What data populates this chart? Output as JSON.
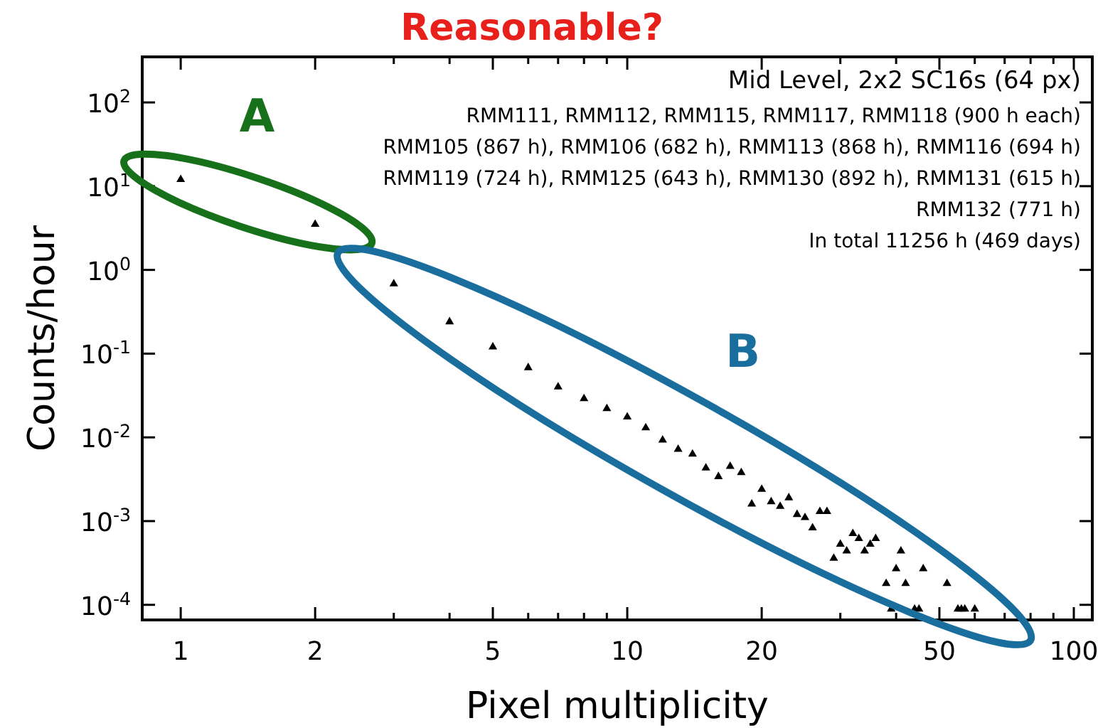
{
  "chart_data": {
    "type": "scatter",
    "title": "Reasonable?",
    "xlabel": "Pixel multiplicity",
    "ylabel": "Counts/hour",
    "log": "xy",
    "marker": "triangle",
    "xlim": [
      0.82,
      110
    ],
    "ylim": [
      6.6e-05,
      350
    ],
    "xticks": [
      1,
      2,
      {
        "value": 3,
        "label": null
      },
      {
        "value": 4,
        "label": null
      },
      5,
      {
        "value": 6,
        "label": null
      },
      {
        "value": 7,
        "label": null
      },
      {
        "value": 8,
        "label": null
      },
      {
        "value": 9,
        "label": null
      },
      10,
      20,
      {
        "value": 30,
        "label": null
      },
      {
        "value": 40,
        "label": null
      },
      50,
      {
        "value": 60,
        "label": null
      },
      {
        "value": 70,
        "label": null
      },
      {
        "value": 80,
        "label": null
      },
      {
        "value": 90,
        "label": null
      },
      100
    ],
    "yticks": [
      {
        "value": 0.0001,
        "label": "10$^{-4}$"
      },
      {
        "value": 0.001,
        "label": "10$^{-3}$"
      },
      {
        "value": 0.01,
        "label": "10$^{-2}$"
      },
      {
        "value": 0.1,
        "label": "10$^{-1}$"
      },
      {
        "value": 1,
        "label": "10$^{0}$"
      },
      {
        "value": 10,
        "label": "10$^{1}$"
      },
      {
        "value": 100,
        "label": "10$^{2}$"
      }
    ],
    "series": [
      {
        "color": "#000000",
        "x": [
          1,
          2
        ],
        "values": [
          12,
          3.5
        ]
      },
      {
        "color": "#000000",
        "x": [
          3,
          4,
          5,
          6,
          7,
          8,
          9,
          10,
          11,
          12,
          13,
          14,
          15,
          16,
          17,
          18,
          19,
          20,
          21,
          22,
          23,
          24,
          25,
          26,
          27,
          28,
          29,
          30,
          31,
          32,
          33,
          34,
          35,
          36,
          38,
          39,
          40,
          41,
          42,
          44,
          45,
          46,
          52,
          55,
          56,
          57,
          60
        ],
        "values": [
          0.68,
          0.24,
          0.12,
          0.068,
          0.04,
          0.029,
          0.022,
          0.0175,
          0.013,
          0.0093,
          0.0072,
          0.0063,
          0.0043,
          0.0034,
          0.0045,
          0.0038,
          0.0016,
          0.0024,
          0.0017,
          0.0015,
          0.0019,
          0.0012,
          0.0011,
          0.00083,
          0.0013,
          0.0013,
          0.00036,
          0.00053,
          0.00044,
          0.00071,
          0.00062,
          0.00044,
          0.00053,
          0.00062,
          0.00018,
          8.9e-05,
          0.00027,
          0.00044,
          0.00018,
          8.9e-05,
          8.9e-05,
          0.00027,
          0.00018,
          8.9e-05,
          8.9e-05,
          8.9e-05,
          8.9e-05
        ]
      }
    ],
    "annotations": [
      "Mid Level, 2x2 SC16s (64 px)",
      "RMM111, RMM112, RMM115, RMM117, RMM118 (900 h each)",
      "RMM105 (867 h), RMM106 (682 h), RMM113 (868 h), RMM116 (694 h)",
      "RMM119 (724 h), RMM125 (643 h), RMM130 (892 h), RMM131 (615 h)",
      "RMM132 (771 h)",
      "In total 11256 h (469 days)",
      "A",
      "B"
    ]
  }
}
